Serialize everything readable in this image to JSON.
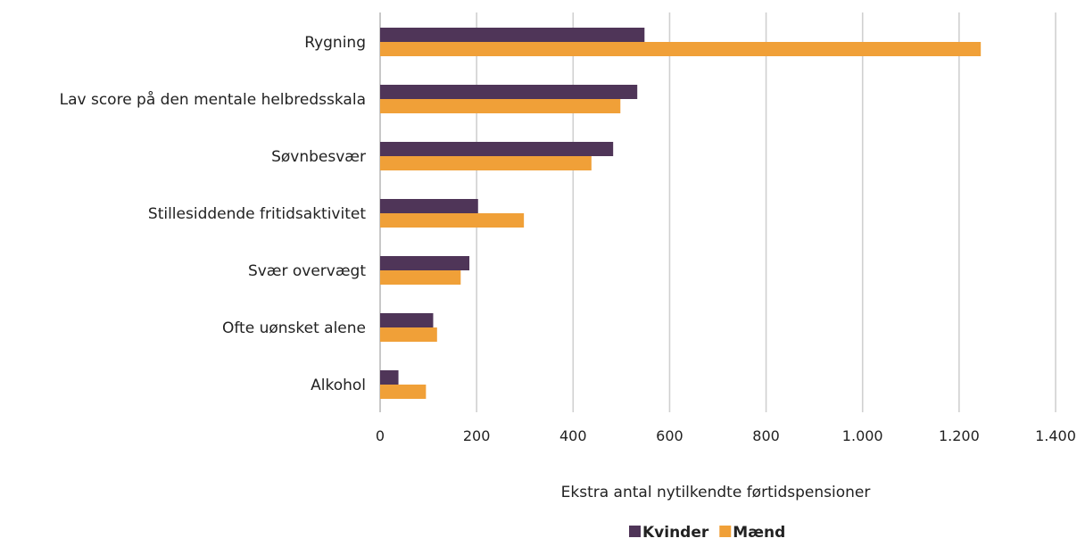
{
  "chart_data": {
    "type": "bar",
    "orientation": "horizontal",
    "categories": [
      "Rygning",
      "Lav score på den mentale helbredsskala",
      "Søvnbesvær",
      "Stillesiddende fritidsaktivitet",
      "Svær overvægt",
      "Ofte uønsket alene",
      "Alkohol"
    ],
    "series": [
      {
        "name": "Kvinder",
        "color": "#4f3558",
        "values": [
          548,
          533,
          483,
          203,
          185,
          110,
          38
        ]
      },
      {
        "name": "Mænd",
        "color": "#f0a038",
        "values": [
          1245,
          498,
          438,
          298,
          167,
          118,
          95
        ]
      }
    ],
    "title": "",
    "xlabel": "Ekstra antal nytilkendte førtidspensioner",
    "ylabel": "",
    "xlim": [
      0,
      1400
    ],
    "xticks": [
      0,
      200,
      400,
      600,
      800,
      1000,
      1200,
      1400
    ],
    "xtick_labels": [
      "0",
      "200",
      "400",
      "600",
      "800",
      "1.000",
      "1.200",
      "1.400"
    ],
    "grid": "vertical",
    "legend_position": "bottom"
  }
}
